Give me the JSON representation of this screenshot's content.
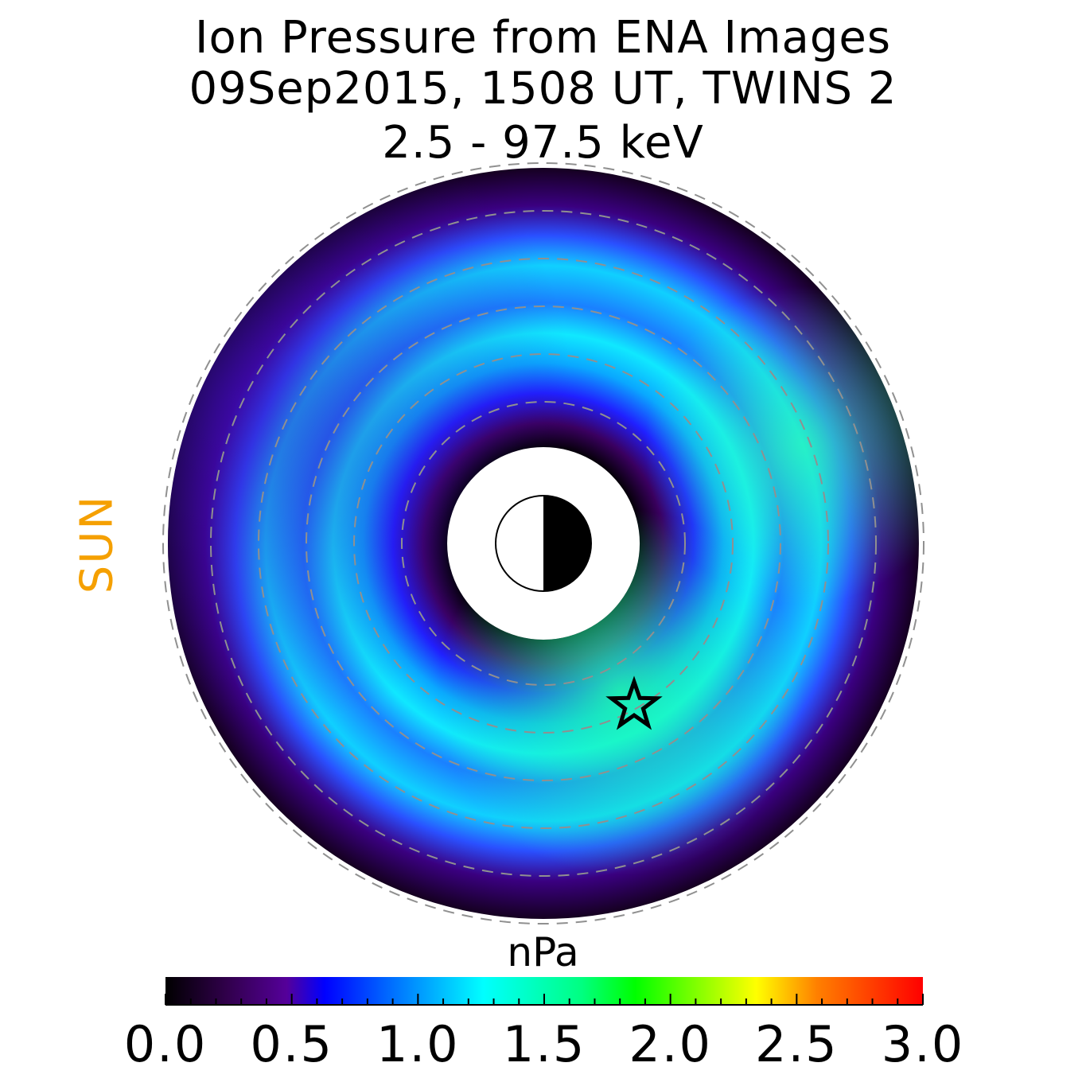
{
  "title": {
    "line1": "Ion Pressure from  ENA Images",
    "line2": "09Sep2015, 1508 UT,  TWINS 2",
    "line3": "2.5 - 97.5 keV"
  },
  "sun_label": "SUN",
  "chart_data": {
    "type": "heatmap",
    "projection": "polar (equatorial plane, Sun to the left)",
    "colorbar": {
      "label": "nPa",
      "range": [
        0.0,
        3.0
      ],
      "tick_labels": [
        "0.0",
        "0.5",
        "1.0",
        "1.5",
        "2.0",
        "2.5",
        "3.0"
      ],
      "tick_values": [
        0.0,
        0.5,
        1.0,
        1.5,
        2.0,
        2.5,
        3.0
      ],
      "colormap": [
        "#000000",
        "#30004a",
        "#55009a",
        "#0000ff",
        "#0080ff",
        "#00ffff",
        "#00ff80",
        "#00ff00",
        "#80ff00",
        "#ffff00",
        "#ff8000",
        "#ff0000"
      ]
    },
    "pressure_map": {
      "value_range_shown": [
        0.0,
        1.5
      ],
      "peak_value": 1.5,
      "dusk_side_ridge_value": 1.4,
      "inner_edge_value": 0.0,
      "outer_edge_value": 0.0
    },
    "markers": [
      {
        "type": "star",
        "meaning": "satellite position"
      },
      {
        "type": "earth",
        "day_side": "left",
        "night_side": "right"
      }
    ],
    "grid": "dashed concentric circles"
  },
  "colors": {
    "sun_label": "#f5a000",
    "grid": "#909090"
  }
}
